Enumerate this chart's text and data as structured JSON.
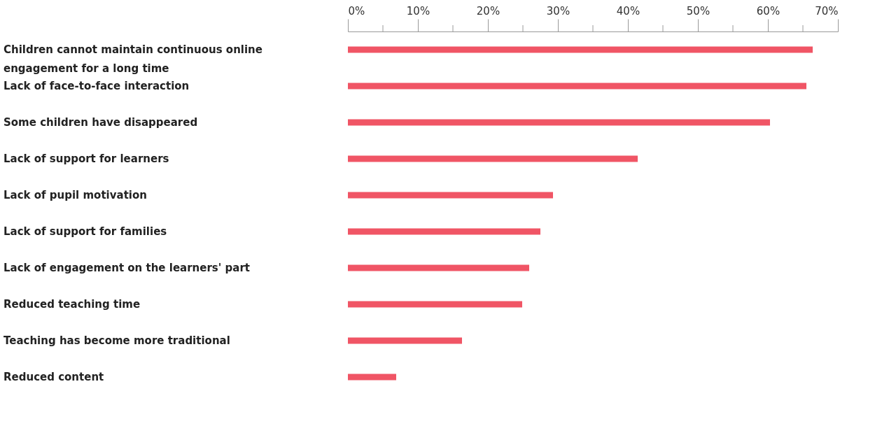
{
  "chart_data": {
    "type": "bar",
    "orientation": "horizontal",
    "categories": [
      "Children cannot maintain continuous online engagement for a long time",
      "Lack of face-to-face interaction",
      "Some children have disappeared",
      "Lack of support for learners",
      "Lack of pupil motivation",
      "Lack of support for families",
      "Lack of engagement on the learners' part",
      "Reduced teaching time",
      "Teaching has become more traditional",
      "Reduced content"
    ],
    "values": [
      66.4,
      65.5,
      60.3,
      41.4,
      29.3,
      27.5,
      25.9,
      24.9,
      16.3,
      6.9
    ],
    "color": "#f05565",
    "xlim": [
      0,
      70
    ],
    "xticks": [
      {
        "value": 0,
        "label": "0%"
      },
      {
        "value": 5,
        "label": null
      },
      {
        "value": 10,
        "label": "10%"
      },
      {
        "value": 15,
        "label": null
      },
      {
        "value": 20,
        "label": "20%"
      },
      {
        "value": 25,
        "label": null
      },
      {
        "value": 30,
        "label": "30%"
      },
      {
        "value": 35,
        "label": null
      },
      {
        "value": 40,
        "label": "40%"
      },
      {
        "value": 45,
        "label": null
      },
      {
        "value": 50,
        "label": "50%"
      },
      {
        "value": 55,
        "label": null
      },
      {
        "value": 60,
        "label": "60%"
      },
      {
        "value": 65,
        "label": null
      },
      {
        "value": 70,
        "label": "70%"
      }
    ],
    "grid": false
  }
}
